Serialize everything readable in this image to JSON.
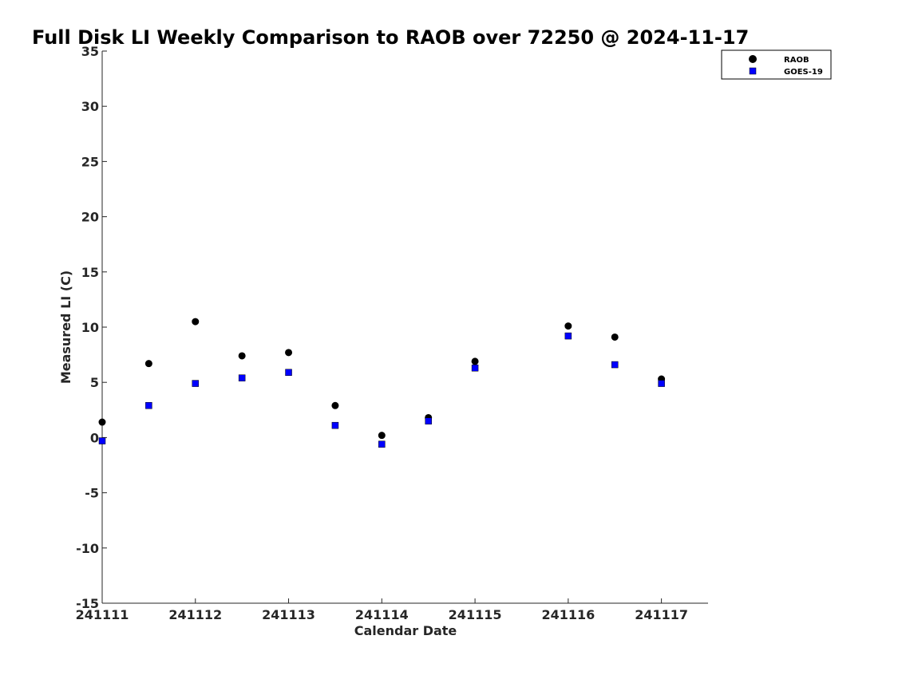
{
  "chart_data": {
    "type": "scatter",
    "title": "Full Disk LI Weekly Comparison to RAOB over 72250 @ 2024-11-17",
    "xlabel": "Calendar Date",
    "ylabel": "Measured LI (C)",
    "xlim": [
      "241111",
      "241117 12Z"
    ],
    "ylim": [
      -15,
      35
    ],
    "x_ticks": [
      "241111",
      "241112",
      "241113",
      "241114",
      "241115",
      "241116",
      "241117"
    ],
    "y_ticks": [
      "-15",
      "-10",
      "-5",
      "0",
      "5",
      "10",
      "15",
      "20",
      "25",
      "30",
      "35"
    ],
    "grid": false,
    "legend": "top-right",
    "series": [
      {
        "name": "RAOB",
        "marker": "circle",
        "color": "#000000",
        "x": [
          "241111 00Z",
          "241111 12Z",
          "241112 00Z",
          "241112 12Z",
          "241113 00Z",
          "241113 12Z",
          "241114 00Z",
          "241114 12Z",
          "241115 00Z",
          "241116 00Z",
          "241116 12Z",
          "241117 00Z"
        ],
        "y": [
          1.4,
          6.7,
          10.5,
          7.4,
          7.7,
          2.9,
          0.2,
          1.8,
          6.9,
          10.1,
          9.1,
          5.3
        ]
      },
      {
        "name": "GOES-19",
        "marker": "square",
        "color": "#0000ff",
        "x": [
          "241111 00Z",
          "241111 12Z",
          "241112 00Z",
          "241112 12Z",
          "241113 00Z",
          "241113 12Z",
          "241114 00Z",
          "241114 12Z",
          "241115 00Z",
          "241116 00Z",
          "241116 12Z",
          "241117 00Z"
        ],
        "y": [
          -0.3,
          2.9,
          4.9,
          5.4,
          5.9,
          1.1,
          -0.6,
          1.5,
          6.3,
          9.2,
          6.6,
          4.9
        ]
      }
    ]
  }
}
